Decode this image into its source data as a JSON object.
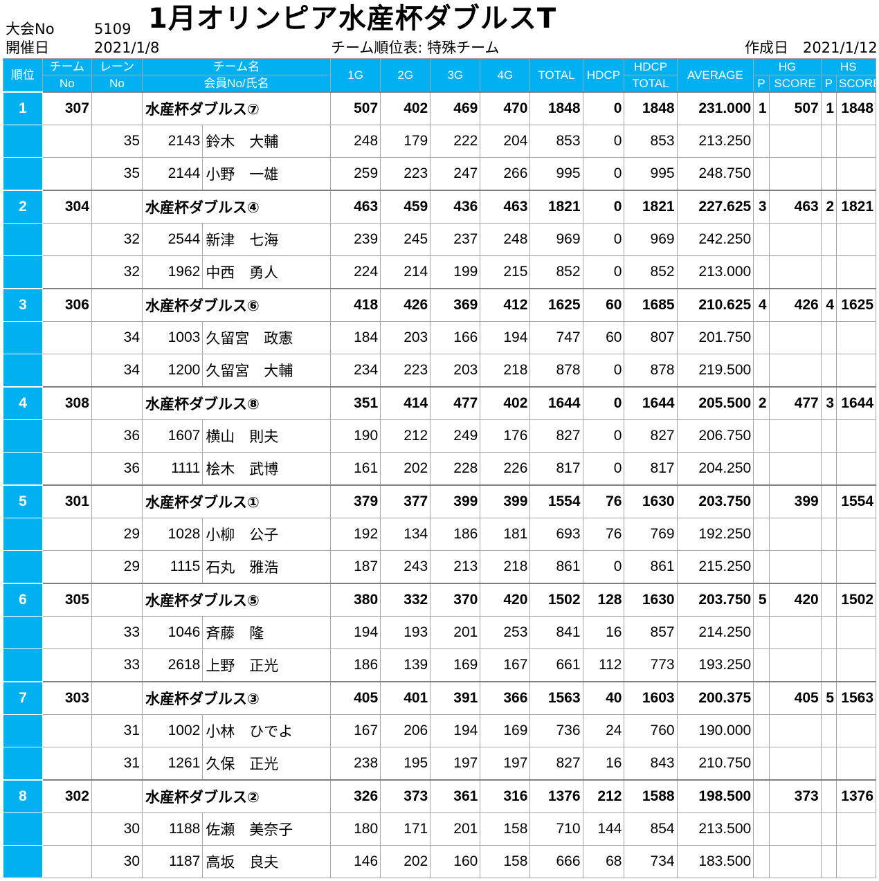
{
  "header": {
    "event_no_label": "大会No",
    "event_no": "5109",
    "title": "1月オリンピア水産杯ダブルスT",
    "date_label": "開催日",
    "date": "2021/1/8",
    "subtitle": "チーム順位表: 特殊チーム",
    "created_label": "作成日",
    "created_date": "2021/1/12"
  },
  "columns": {
    "rank": "順位",
    "team_no_1": "チーム",
    "team_no_2": "No",
    "lane_1": "レーン",
    "lane_2": "No",
    "name_1": "チーム名",
    "name_2": "会員No/氏名",
    "g1": "1G",
    "g2": "2G",
    "g3": "3G",
    "g4": "4G",
    "total": "TOTAL",
    "hdcp": "HDCP",
    "hdcp_total_1": "HDCP",
    "hdcp_total_2": "TOTAL",
    "average": "AVERAGE",
    "hg": "HG",
    "hg_p": "P",
    "hg_score": "SCORE",
    "hs": "HS",
    "hs_p": "P",
    "hs_score": "SCORE"
  },
  "teams": [
    {
      "rank": "1",
      "team_no": "307",
      "name": "水産杯ダブルス⑦",
      "g": [
        "507",
        "402",
        "469",
        "470"
      ],
      "total": "1848",
      "hdcp": "0",
      "hdcp_total": "1848",
      "average": "231.000",
      "hg_p": "1",
      "hg_score": "507",
      "hs_p": "1",
      "hs_score": "1848",
      "members": [
        {
          "lane": "35",
          "member_no": "2143",
          "name": "鈴木　大輔",
          "g": [
            "248",
            "179",
            "222",
            "204"
          ],
          "total": "853",
          "hdcp": "0",
          "hdcp_total": "853",
          "average": "213.250"
        },
        {
          "lane": "35",
          "member_no": "2144",
          "name": "小野　一雄",
          "g": [
            "259",
            "223",
            "247",
            "266"
          ],
          "total": "995",
          "hdcp": "0",
          "hdcp_total": "995",
          "average": "248.750"
        }
      ]
    },
    {
      "rank": "2",
      "team_no": "304",
      "name": "水産杯ダブルス④",
      "g": [
        "463",
        "459",
        "436",
        "463"
      ],
      "total": "1821",
      "hdcp": "0",
      "hdcp_total": "1821",
      "average": "227.625",
      "hg_p": "3",
      "hg_score": "463",
      "hs_p": "2",
      "hs_score": "1821",
      "members": [
        {
          "lane": "32",
          "member_no": "2544",
          "name": "新津　七海",
          "g": [
            "239",
            "245",
            "237",
            "248"
          ],
          "total": "969",
          "hdcp": "0",
          "hdcp_total": "969",
          "average": "242.250"
        },
        {
          "lane": "32",
          "member_no": "1962",
          "name": "中西　勇人",
          "g": [
            "224",
            "214",
            "199",
            "215"
          ],
          "total": "852",
          "hdcp": "0",
          "hdcp_total": "852",
          "average": "213.000"
        }
      ]
    },
    {
      "rank": "3",
      "team_no": "306",
      "name": "水産杯ダブルス⑥",
      "g": [
        "418",
        "426",
        "369",
        "412"
      ],
      "total": "1625",
      "hdcp": "60",
      "hdcp_total": "1685",
      "average": "210.625",
      "hg_p": "4",
      "hg_score": "426",
      "hs_p": "4",
      "hs_score": "1625",
      "members": [
        {
          "lane": "34",
          "member_no": "1003",
          "name": "久留宮　政憲",
          "g": [
            "184",
            "203",
            "166",
            "194"
          ],
          "total": "747",
          "hdcp": "60",
          "hdcp_total": "807",
          "average": "201.750"
        },
        {
          "lane": "34",
          "member_no": "1200",
          "name": "久留宮　大輔",
          "g": [
            "234",
            "223",
            "203",
            "218"
          ],
          "total": "878",
          "hdcp": "0",
          "hdcp_total": "878",
          "average": "219.500"
        }
      ]
    },
    {
      "rank": "4",
      "team_no": "308",
      "name": "水産杯ダブルス⑧",
      "g": [
        "351",
        "414",
        "477",
        "402"
      ],
      "total": "1644",
      "hdcp": "0",
      "hdcp_total": "1644",
      "average": "205.500",
      "hg_p": "2",
      "hg_score": "477",
      "hs_p": "3",
      "hs_score": "1644",
      "members": [
        {
          "lane": "36",
          "member_no": "1607",
          "name": "横山　則夫",
          "g": [
            "190",
            "212",
            "249",
            "176"
          ],
          "total": "827",
          "hdcp": "0",
          "hdcp_total": "827",
          "average": "206.750"
        },
        {
          "lane": "36",
          "member_no": "1111",
          "name": "桧木　武博",
          "g": [
            "161",
            "202",
            "228",
            "226"
          ],
          "total": "817",
          "hdcp": "0",
          "hdcp_total": "817",
          "average": "204.250"
        }
      ]
    },
    {
      "rank": "5",
      "team_no": "301",
      "name": "水産杯ダブルス①",
      "g": [
        "379",
        "377",
        "399",
        "399"
      ],
      "total": "1554",
      "hdcp": "76",
      "hdcp_total": "1630",
      "average": "203.750",
      "hg_p": "",
      "hg_score": "399",
      "hs_p": "",
      "hs_score": "1554",
      "members": [
        {
          "lane": "29",
          "member_no": "1028",
          "name": "小柳　公子",
          "g": [
            "192",
            "134",
            "186",
            "181"
          ],
          "total": "693",
          "hdcp": "76",
          "hdcp_total": "769",
          "average": "192.250"
        },
        {
          "lane": "29",
          "member_no": "1115",
          "name": "石丸　雅浩",
          "g": [
            "187",
            "243",
            "213",
            "218"
          ],
          "total": "861",
          "hdcp": "0",
          "hdcp_total": "861",
          "average": "215.250"
        }
      ]
    },
    {
      "rank": "6",
      "team_no": "305",
      "name": "水産杯ダブルス⑤",
      "g": [
        "380",
        "332",
        "370",
        "420"
      ],
      "total": "1502",
      "hdcp": "128",
      "hdcp_total": "1630",
      "average": "203.750",
      "hg_p": "5",
      "hg_score": "420",
      "hs_p": "",
      "hs_score": "1502",
      "members": [
        {
          "lane": "33",
          "member_no": "1046",
          "name": "斉藤　隆",
          "g": [
            "194",
            "193",
            "201",
            "253"
          ],
          "total": "841",
          "hdcp": "16",
          "hdcp_total": "857",
          "average": "214.250"
        },
        {
          "lane": "33",
          "member_no": "2618",
          "name": "上野　正光",
          "g": [
            "186",
            "139",
            "169",
            "167"
          ],
          "total": "661",
          "hdcp": "112",
          "hdcp_total": "773",
          "average": "193.250"
        }
      ]
    },
    {
      "rank": "7",
      "team_no": "303",
      "name": "水産杯ダブルス③",
      "g": [
        "405",
        "401",
        "391",
        "366"
      ],
      "total": "1563",
      "hdcp": "40",
      "hdcp_total": "1603",
      "average": "200.375",
      "hg_p": "",
      "hg_score": "405",
      "hs_p": "5",
      "hs_score": "1563",
      "members": [
        {
          "lane": "31",
          "member_no": "1002",
          "name": "小林　ひでよ",
          "g": [
            "167",
            "206",
            "194",
            "169"
          ],
          "total": "736",
          "hdcp": "24",
          "hdcp_total": "760",
          "average": "190.000"
        },
        {
          "lane": "31",
          "member_no": "1261",
          "name": "久保　正光",
          "g": [
            "238",
            "195",
            "197",
            "197"
          ],
          "total": "827",
          "hdcp": "16",
          "hdcp_total": "843",
          "average": "210.750"
        }
      ]
    },
    {
      "rank": "8",
      "team_no": "302",
      "name": "水産杯ダブルス②",
      "g": [
        "326",
        "373",
        "361",
        "316"
      ],
      "total": "1376",
      "hdcp": "212",
      "hdcp_total": "1588",
      "average": "198.500",
      "hg_p": "",
      "hg_score": "373",
      "hs_p": "",
      "hs_score": "1376",
      "members": [
        {
          "lane": "30",
          "member_no": "1188",
          "name": "佐瀬　美奈子",
          "g": [
            "180",
            "171",
            "201",
            "158"
          ],
          "total": "710",
          "hdcp": "144",
          "hdcp_total": "854",
          "average": "213.500"
        },
        {
          "lane": "30",
          "member_no": "1187",
          "name": "高坂　良夫",
          "g": [
            "146",
            "202",
            "160",
            "158"
          ],
          "total": "666",
          "hdcp": "68",
          "hdcp_total": "734",
          "average": "183.500"
        }
      ]
    }
  ]
}
